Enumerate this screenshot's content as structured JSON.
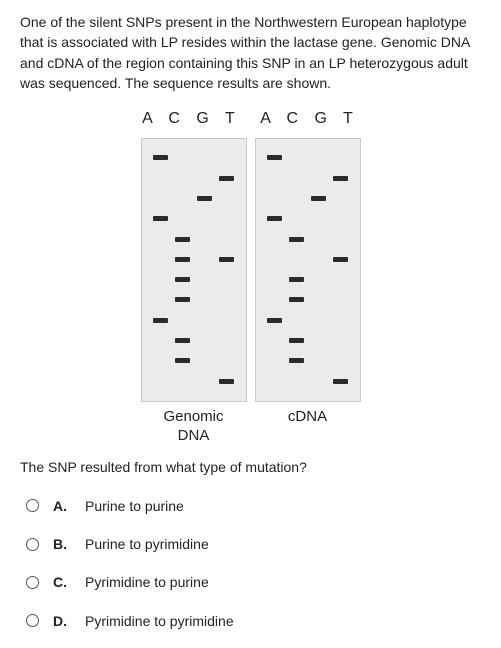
{
  "intro_text": "One of the silent SNPs present in the Northwestern European haplotype that is associated with LP resides within the lactase gene. Genomic DNA and cDNA of the region containing this SNP in an LP heterozygous adult was sequenced. The sequence results are shown.",
  "lanes_header": "A  C  G  T",
  "gels": {
    "left": {
      "label_line1": "Genomic",
      "label_line2": "DNA"
    },
    "right": {
      "label_line1": "cDNA",
      "label_line2": ""
    }
  },
  "gel_style": {
    "background_color": "#eceaea",
    "border_color": "#c8c8c8",
    "band_color": "#2b2b2b",
    "lane_count": 4,
    "row_count": 12
  },
  "gel_left_bands": [
    [
      1,
      0,
      0,
      0
    ],
    [
      0,
      0,
      0,
      1
    ],
    [
      0,
      0,
      1,
      0
    ],
    [
      1,
      0,
      0,
      0
    ],
    [
      0,
      1,
      0,
      0
    ],
    [
      0,
      1,
      0,
      1
    ],
    [
      0,
      1,
      0,
      0
    ],
    [
      0,
      1,
      0,
      0
    ],
    [
      1,
      0,
      0,
      0
    ],
    [
      0,
      1,
      0,
      0
    ],
    [
      0,
      1,
      0,
      0
    ],
    [
      0,
      0,
      0,
      1
    ]
  ],
  "gel_right_bands": [
    [
      1,
      0,
      0,
      0
    ],
    [
      0,
      0,
      0,
      1
    ],
    [
      0,
      0,
      1,
      0
    ],
    [
      1,
      0,
      0,
      0
    ],
    [
      0,
      1,
      0,
      0
    ],
    [
      0,
      0,
      0,
      1
    ],
    [
      0,
      1,
      0,
      0
    ],
    [
      0,
      1,
      0,
      0
    ],
    [
      1,
      0,
      0,
      0
    ],
    [
      0,
      1,
      0,
      0
    ],
    [
      0,
      1,
      0,
      0
    ],
    [
      0,
      0,
      0,
      1
    ]
  ],
  "question_text": "The SNP resulted from what type of mutation?",
  "options": [
    {
      "letter": "A.",
      "text": "Purine to purine"
    },
    {
      "letter": "B.",
      "text": "Purine to pyrimidine"
    },
    {
      "letter": "C.",
      "text": "Pyrimidine to purine"
    },
    {
      "letter": "D.",
      "text": "Pyrimidine to pyrimidine"
    }
  ]
}
